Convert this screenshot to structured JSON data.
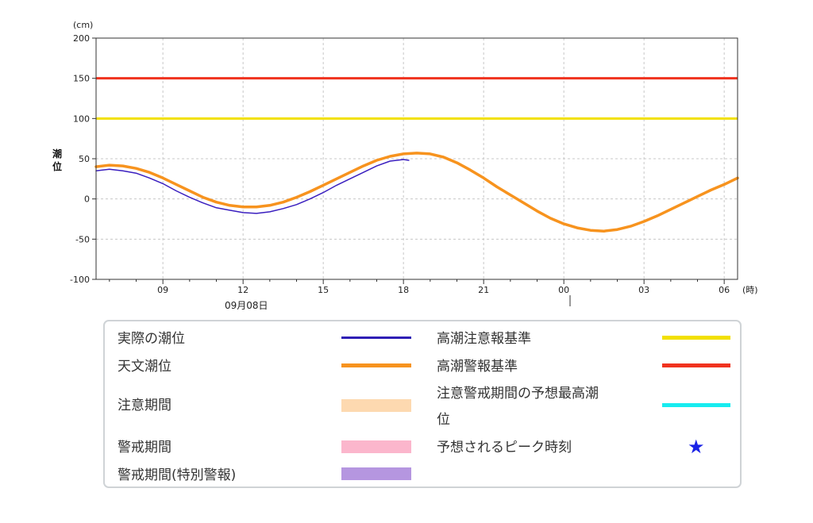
{
  "chart_data": {
    "type": "line",
    "y_unit": "(cm)",
    "x_unit": "(時)",
    "ylabel": "潮位",
    "ylim": [
      -100,
      200
    ],
    "yticks": [
      -100,
      -50,
      0,
      50,
      100,
      150,
      200
    ],
    "x_range_hours": [
      6.5,
      30.5
    ],
    "xticks": [
      {
        "h": 9,
        "label": "09"
      },
      {
        "h": 12,
        "label": "12"
      },
      {
        "h": 15,
        "label": "15"
      },
      {
        "h": 18,
        "label": "18"
      },
      {
        "h": 21,
        "label": "21"
      },
      {
        "h": 24,
        "label": "00"
      },
      {
        "h": 27,
        "label": "03"
      },
      {
        "h": 30,
        "label": "06"
      }
    ],
    "date_label": "09月08日",
    "grid": true,
    "thresholds": [
      {
        "name": "高潮注意報基準",
        "value": 100,
        "color": "#f2e000"
      },
      {
        "name": "高潮警報基準",
        "value": 150,
        "color": "#f0321e"
      }
    ],
    "series": [
      {
        "name": "天文潮位",
        "color": "#f7931e",
        "x": [
          6.5,
          7.0,
          7.5,
          8.0,
          8.5,
          9.0,
          9.5,
          10.0,
          10.5,
          11.0,
          11.5,
          12.0,
          12.5,
          13.0,
          13.5,
          14.0,
          14.5,
          15.0,
          15.5,
          16.0,
          16.5,
          17.0,
          17.5,
          18.0,
          18.5,
          19.0,
          19.5,
          20.0,
          20.5,
          21.0,
          21.5,
          22.0,
          22.5,
          23.0,
          23.5,
          24.0,
          24.5,
          25.0,
          25.5,
          26.0,
          26.5,
          27.0,
          27.5,
          28.0,
          28.5,
          29.0,
          29.5,
          30.0,
          30.5
        ],
        "values": [
          40,
          42,
          41,
          38,
          33,
          26,
          18,
          10,
          2,
          -4,
          -8,
          -10,
          -10,
          -8,
          -4,
          2,
          9,
          17,
          25,
          33,
          41,
          48,
          53,
          56,
          57,
          56,
          52,
          45,
          36,
          26,
          15,
          5,
          -5,
          -15,
          -24,
          -31,
          -36,
          -39,
          -40,
          -38,
          -34,
          -28,
          -21,
          -13,
          -5,
          3,
          11,
          18,
          26
        ]
      },
      {
        "name": "実際の潮位",
        "color": "#3a1fbf",
        "x": [
          6.5,
          7.0,
          7.5,
          8.0,
          8.5,
          9.0,
          9.5,
          10.0,
          10.5,
          11.0,
          11.5,
          12.0,
          12.5,
          13.0,
          13.5,
          14.0,
          14.5,
          15.0,
          15.5,
          16.0,
          16.5,
          17.0,
          17.5,
          18.0,
          18.2
        ],
        "values": [
          35,
          37,
          35,
          32,
          26,
          19,
          10,
          2,
          -5,
          -11,
          -14,
          -17,
          -18,
          -16,
          -12,
          -7,
          0,
          8,
          17,
          25,
          33,
          41,
          47,
          49,
          48
        ]
      }
    ]
  },
  "legend": {
    "actual": "実際の潮位",
    "astronomical": "天文潮位",
    "caution_period": "注意期間",
    "warning_period": "警戒期間",
    "special_warning_period": "警戒期間(特別警報)",
    "caution_criterion": "高潮注意報基準",
    "warning_criterion": "高潮警報基準",
    "predicted_max_line1": "注意警戒期間の予想最高潮",
    "predicted_max_line2": "位",
    "peak_time": "予想されるピーク時刻",
    "star": "★",
    "colors": {
      "actual": "#2f1fb5",
      "astronomical": "#f7931e",
      "caution_period": "#fdd9b0",
      "warning_period": "#fbb6cc",
      "special_warning_period": "#b596e0",
      "caution_criterion": "#f2e000",
      "warning_criterion": "#f0321e",
      "predicted_max": "#17ecf0",
      "peak_star": "#1a22e6"
    }
  }
}
